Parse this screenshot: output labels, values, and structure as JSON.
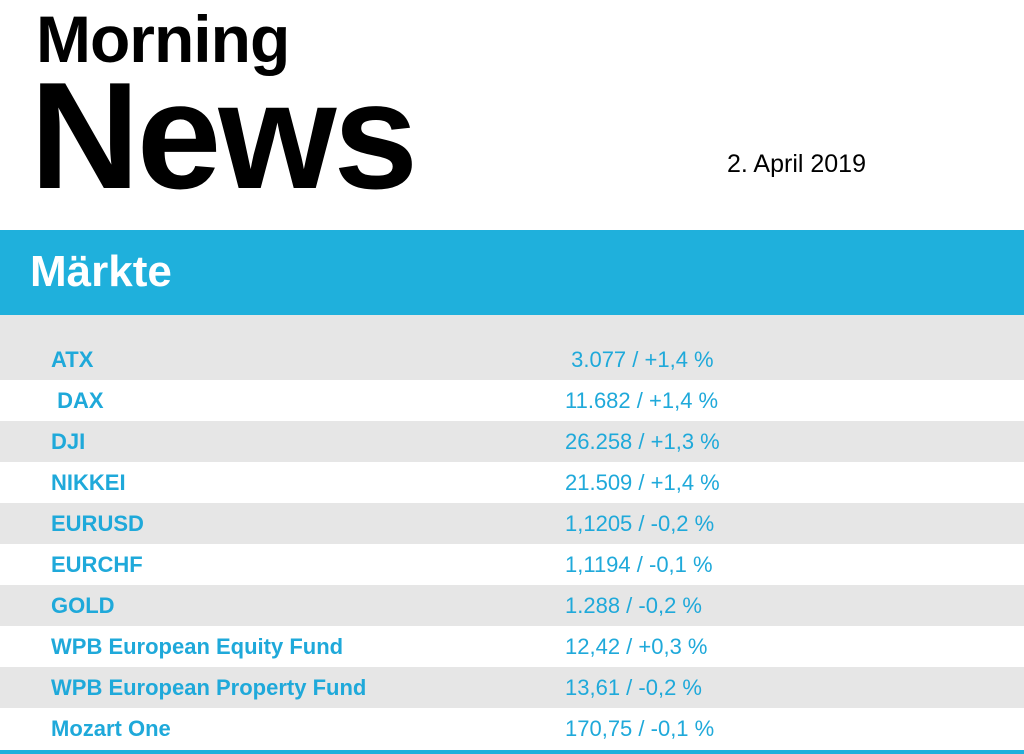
{
  "header": {
    "title_line1": "Morning",
    "title_line2": "News",
    "date": "2. April 2019"
  },
  "section": {
    "title": "Märkte"
  },
  "colors": {
    "accent": "#1fb0dc",
    "row_shade": "#e6e6e6",
    "text_accent": "#1fa9da"
  },
  "markets": [
    {
      "name": "ATX",
      "value": " 3.077 / +1,4 %"
    },
    {
      "name": " DAX",
      "value": "11.682 / +1,4 %"
    },
    {
      "name": "DJI",
      "value": "26.258 / +1,3 %"
    },
    {
      "name": "NIKKEI",
      "value": "21.509 / +1,4 %"
    },
    {
      "name": "EURUSD",
      "value": "1,1205 / -0,2 %"
    },
    {
      "name": "EURCHF",
      "value": "1,1194 / -0,1 %"
    },
    {
      "name": "GOLD",
      "value": "1.288 / -0,2 %"
    },
    {
      "name": "WPB European Equity Fund",
      "value": "12,42 / +0,3 %"
    },
    {
      "name": "WPB European Property Fund",
      "value": "13,61 / -0,2 %"
    },
    {
      "name": "Mozart One",
      "value": "170,75 / -0,1 %"
    }
  ]
}
